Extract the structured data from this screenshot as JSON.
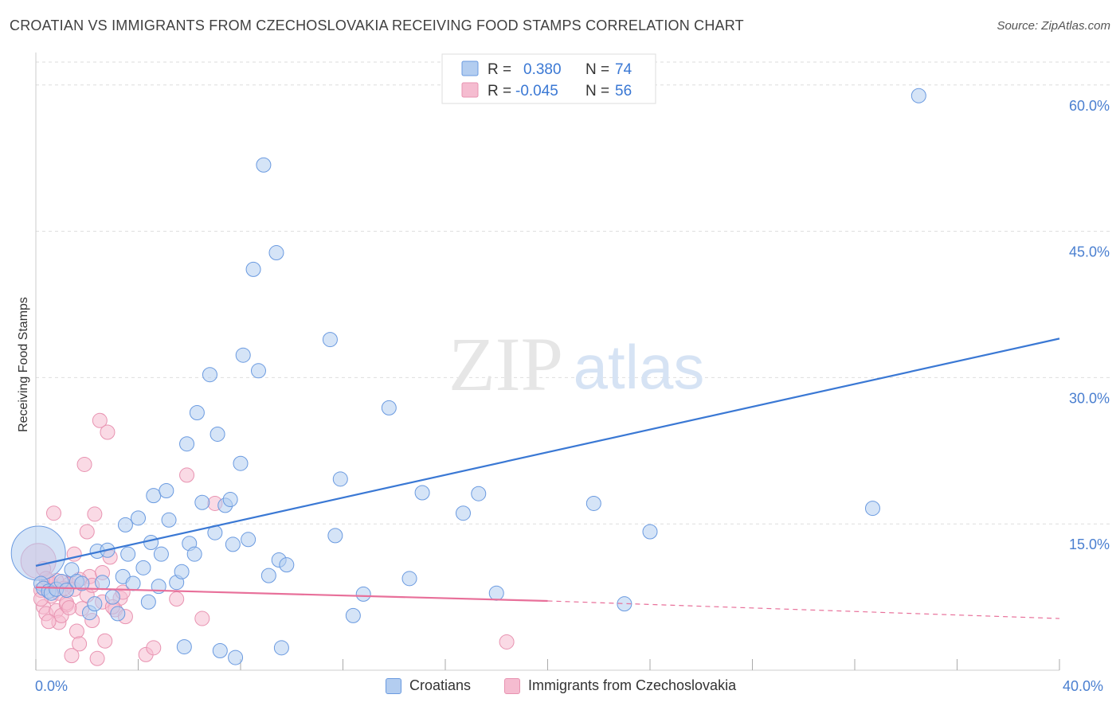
{
  "title": "CROATIAN VS IMMIGRANTS FROM CZECHOSLOVAKIA RECEIVING FOOD STAMPS CORRELATION CHART",
  "source": "Source: ZipAtlas.com",
  "watermark": {
    "zip": "ZIP",
    "atlas": "atlas"
  },
  "colors": {
    "blue": "#3a78d4",
    "blue_fill": "#b3cdf0",
    "blue_stroke": "#6a9ae0",
    "pink": "#e8709a",
    "pink_fill": "#f5bcd0",
    "pink_stroke": "#e893b1",
    "tick_text": "#4a7fd0",
    "grid": "#dddddd"
  },
  "legend_top": [
    {
      "series": "Croatians",
      "r_label": "R =",
      "r_value": "0.380",
      "n_label": "N =",
      "n_value": "74"
    },
    {
      "series": "Immigrants from Czechoslovakia",
      "r_label": "R =",
      "r_value": "-0.045",
      "n_label": "N =",
      "n_value": "56"
    }
  ],
  "chart_data": {
    "type": "scatter",
    "title": "CROATIAN VS IMMIGRANTS FROM CZECHOSLOVAKIA RECEIVING FOOD STAMPS CORRELATION CHART",
    "xlabel": "",
    "ylabel": "Receiving Food Stamps",
    "xlim": [
      0,
      40
    ],
    "ylim": [
      0,
      63
    ],
    "x_tick_labels": [
      "0.0%",
      "40.0%"
    ],
    "y_ticks": [
      15,
      30,
      45,
      60
    ],
    "y_tick_labels": [
      "15.0%",
      "30.0%",
      "45.0%",
      "60.0%"
    ],
    "grid": true,
    "series": [
      {
        "name": "Croatians",
        "color": "blue",
        "trend": {
          "x0": 0,
          "y0": 10.7,
          "x1": 40,
          "y1": 34.0,
          "dashed_from": null
        },
        "points": [
          [
            0.1,
            12.0
          ],
          [
            0.2,
            8.9
          ],
          [
            0.3,
            8.4
          ],
          [
            0.5,
            8.1
          ],
          [
            0.6,
            7.9
          ],
          [
            0.8,
            8.3
          ],
          [
            1.0,
            9.1
          ],
          [
            1.2,
            8.2
          ],
          [
            1.4,
            10.3
          ],
          [
            1.6,
            9.1
          ],
          [
            1.8,
            8.9
          ],
          [
            2.1,
            5.9
          ],
          [
            2.3,
            6.8
          ],
          [
            2.4,
            12.2
          ],
          [
            2.6,
            9.0
          ],
          [
            2.8,
            12.3
          ],
          [
            3.0,
            7.5
          ],
          [
            3.2,
            5.8
          ],
          [
            3.4,
            9.6
          ],
          [
            3.5,
            14.9
          ],
          [
            3.6,
            11.9
          ],
          [
            3.8,
            8.9
          ],
          [
            4.0,
            15.6
          ],
          [
            4.2,
            10.5
          ],
          [
            4.4,
            7.0
          ],
          [
            4.5,
            13.1
          ],
          [
            4.6,
            17.9
          ],
          [
            4.8,
            8.6
          ],
          [
            4.9,
            11.9
          ],
          [
            5.1,
            18.4
          ],
          [
            5.2,
            15.4
          ],
          [
            5.5,
            9.0
          ],
          [
            5.7,
            10.1
          ],
          [
            5.9,
            23.2
          ],
          [
            6.0,
            13.0
          ],
          [
            6.2,
            11.9
          ],
          [
            6.3,
            26.4
          ],
          [
            6.5,
            17.2
          ],
          [
            6.8,
            30.3
          ],
          [
            7.0,
            14.1
          ],
          [
            7.1,
            24.2
          ],
          [
            7.4,
            16.9
          ],
          [
            7.6,
            17.5
          ],
          [
            7.7,
            12.9
          ],
          [
            8.0,
            21.2
          ],
          [
            8.1,
            32.3
          ],
          [
            8.3,
            13.4
          ],
          [
            8.5,
            41.1
          ],
          [
            8.7,
            30.7
          ],
          [
            8.9,
            51.8
          ],
          [
            9.1,
            9.7
          ],
          [
            9.4,
            42.8
          ],
          [
            9.5,
            11.3
          ],
          [
            9.8,
            10.8
          ],
          [
            11.5,
            33.9
          ],
          [
            11.7,
            13.8
          ],
          [
            11.9,
            19.6
          ],
          [
            12.8,
            7.8
          ],
          [
            13.8,
            26.9
          ],
          [
            14.6,
            9.4
          ],
          [
            15.1,
            18.2
          ],
          [
            16.7,
            16.1
          ],
          [
            17.3,
            18.1
          ],
          [
            18.0,
            7.9
          ],
          [
            21.8,
            17.1
          ],
          [
            23.0,
            6.8
          ],
          [
            24.0,
            14.2
          ],
          [
            32.7,
            16.6
          ],
          [
            34.5,
            58.9
          ],
          [
            5.8,
            2.4
          ],
          [
            7.8,
            1.3
          ],
          [
            9.6,
            2.3
          ],
          [
            12.4,
            5.6
          ],
          [
            7.2,
            2.0
          ]
        ],
        "sizes": [
          [
            0,
            34
          ]
        ]
      },
      {
        "name": "Immigrants from Czechoslovakia",
        "color": "pink",
        "trend": {
          "x0": 0,
          "y0": 8.5,
          "x1": 20,
          "y1": 7.1,
          "dash_x1": 40,
          "dash_y1": 5.3
        },
        "points": [
          [
            0.1,
            11.2
          ],
          [
            0.2,
            8.2
          ],
          [
            0.3,
            6.5
          ],
          [
            0.4,
            5.8
          ],
          [
            0.5,
            9.2
          ],
          [
            0.6,
            7.6
          ],
          [
            0.7,
            16.1
          ],
          [
            0.8,
            6.1
          ],
          [
            0.9,
            4.9
          ],
          [
            1.0,
            5.6
          ],
          [
            1.1,
            9.0
          ],
          [
            1.2,
            6.7
          ],
          [
            1.3,
            8.8
          ],
          [
            1.4,
            1.5
          ],
          [
            1.5,
            11.9
          ],
          [
            1.6,
            4.0
          ],
          [
            1.7,
            2.7
          ],
          [
            1.8,
            6.3
          ],
          [
            1.9,
            21.1
          ],
          [
            2.0,
            14.2
          ],
          [
            2.1,
            9.6
          ],
          [
            2.2,
            5.1
          ],
          [
            2.3,
            16.0
          ],
          [
            2.4,
            1.2
          ],
          [
            2.5,
            25.6
          ],
          [
            2.6,
            10.0
          ],
          [
            2.7,
            3.0
          ],
          [
            2.8,
            24.4
          ],
          [
            2.9,
            11.6
          ],
          [
            3.1,
            6.2
          ],
          [
            3.3,
            7.4
          ],
          [
            3.4,
            8.0
          ],
          [
            3.5,
            5.5
          ],
          [
            4.3,
            1.6
          ],
          [
            4.6,
            2.3
          ],
          [
            5.5,
            7.3
          ],
          [
            5.9,
            20.0
          ],
          [
            6.5,
            5.3
          ],
          [
            7.0,
            17.1
          ],
          [
            18.4,
            2.9
          ],
          [
            0.3,
            10.4
          ],
          [
            0.6,
            8.8
          ],
          [
            0.9,
            7.9
          ],
          [
            1.2,
            6.9
          ],
          [
            1.5,
            8.3
          ],
          [
            2.0,
            7.7
          ],
          [
            0.4,
            9.4
          ],
          [
            0.8,
            9.2
          ],
          [
            1.1,
            8.4
          ],
          [
            2.6,
            7.0
          ],
          [
            3.0,
            6.5
          ],
          [
            0.2,
            7.3
          ],
          [
            1.7,
            9.3
          ],
          [
            2.2,
            8.7
          ],
          [
            0.5,
            5.0
          ],
          [
            1.3,
            6.4
          ]
        ],
        "sizes": [
          [
            0,
            22
          ]
        ]
      }
    ]
  }
}
